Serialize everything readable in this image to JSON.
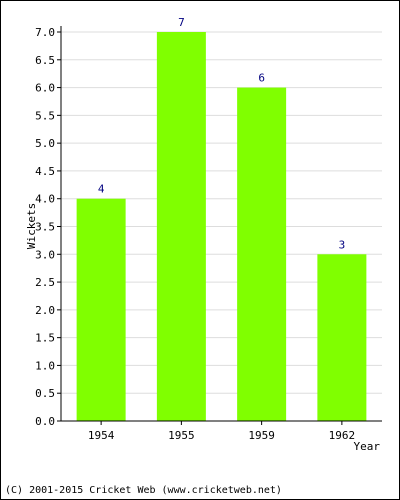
{
  "chart_data": {
    "type": "bar",
    "categories": [
      "1954",
      "1955",
      "1959",
      "1962"
    ],
    "values": [
      4,
      7,
      6,
      3
    ],
    "data_labels": [
      "4",
      "7",
      "6",
      "3"
    ],
    "xlabel": "Year",
    "ylabel": "Wickets",
    "ylim": [
      0,
      7
    ],
    "yticks": [
      "0.0",
      "0.5",
      "1.0",
      "1.5",
      "2.0",
      "2.5",
      "3.0",
      "3.5",
      "4.0",
      "4.5",
      "5.0",
      "5.5",
      "6.0",
      "6.5",
      "7.0"
    ],
    "grid": true,
    "bar_color": "#80ff00",
    "label_color": "#000080"
  },
  "footer": "(C) 2001-2015 Cricket Web (www.cricketweb.net)"
}
